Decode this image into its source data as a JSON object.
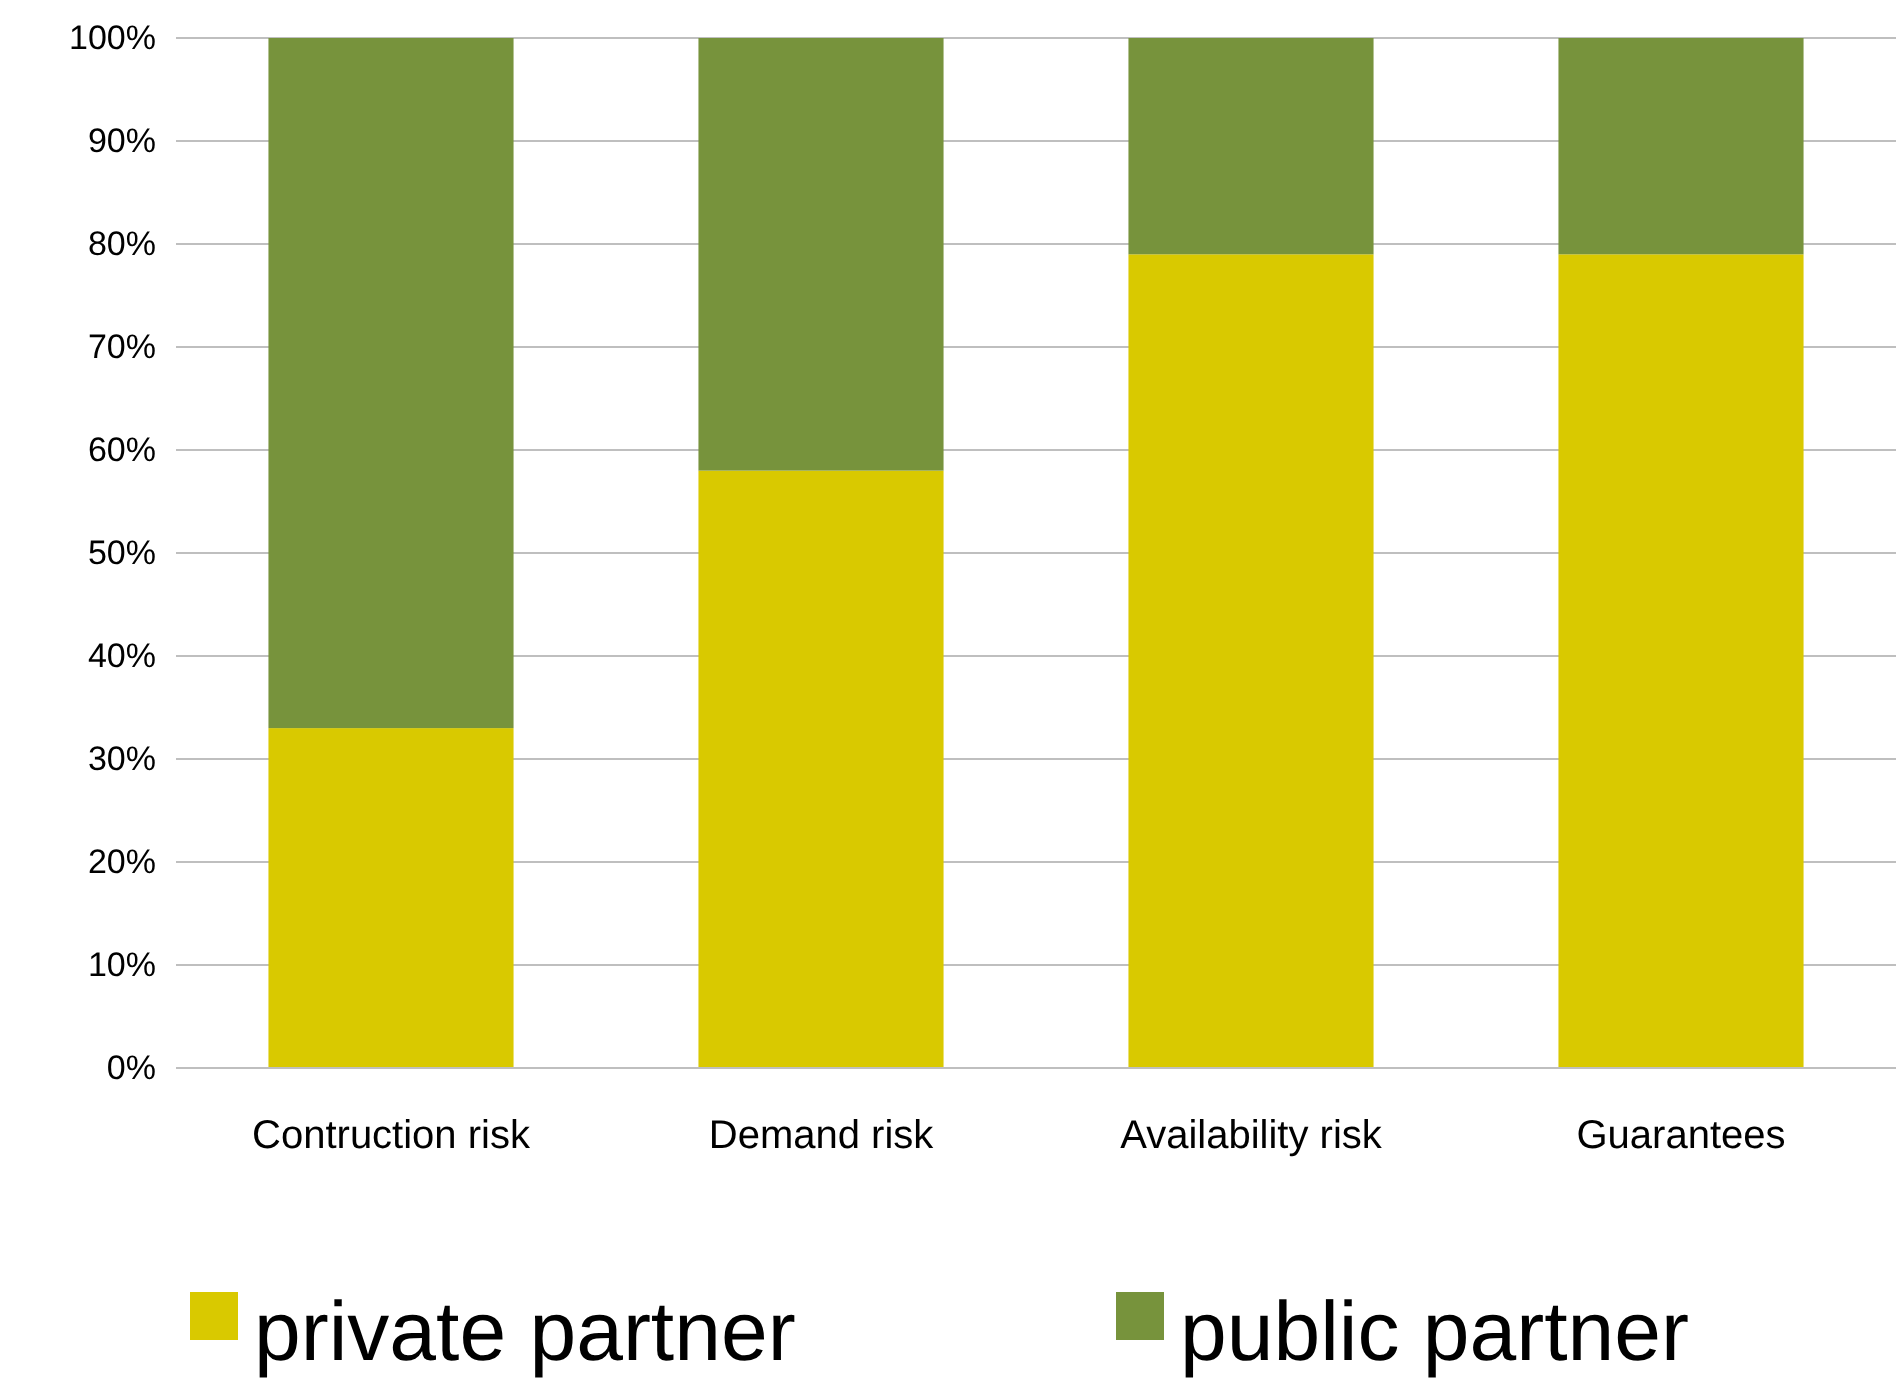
{
  "chart_data": {
    "type": "bar",
    "stacked": true,
    "categories": [
      "Contruction risk",
      "Demand risk",
      "Availability risk",
      "Guarantees"
    ],
    "series": [
      {
        "name": "private partner",
        "color": "#d9c900",
        "values": [
          33,
          58,
          79,
          79
        ]
      },
      {
        "name": "public partner",
        "color": "#77933c",
        "values": [
          67,
          42,
          21,
          21
        ]
      }
    ],
    "ylim": [
      0,
      100
    ],
    "yticks": [
      {
        "value": 0,
        "label": "0%"
      },
      {
        "value": 10,
        "label": "10%"
      },
      {
        "value": 20,
        "label": "20%"
      },
      {
        "value": 30,
        "label": "30%"
      },
      {
        "value": 40,
        "label": "40%"
      },
      {
        "value": 50,
        "label": "50%"
      },
      {
        "value": 60,
        "label": "60%"
      },
      {
        "value": 70,
        "label": "70%"
      },
      {
        "value": 80,
        "label": "80%"
      },
      {
        "value": 90,
        "label": "90%"
      },
      {
        "value": 100,
        "label": "100%"
      }
    ],
    "grid": "y",
    "legend": "bottom"
  }
}
